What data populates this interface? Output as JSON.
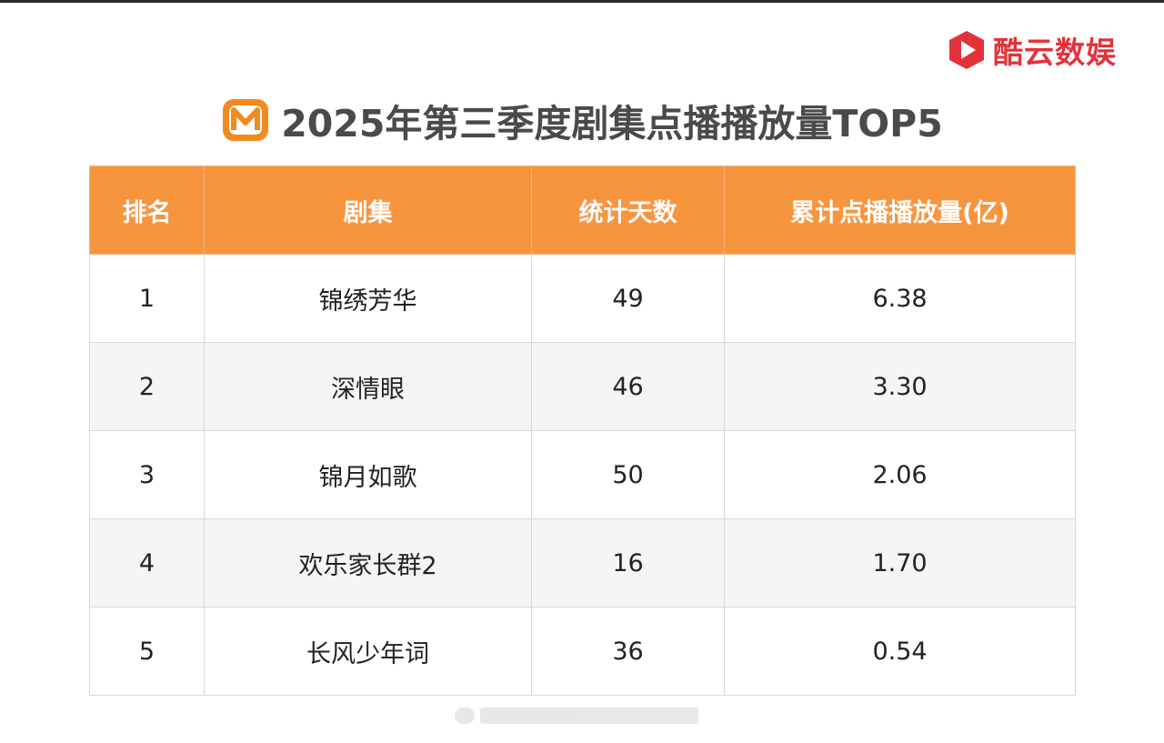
{
  "brand": {
    "name": "酷云数娱",
    "logo_icon": "play-hexagon-icon",
    "color": "#e4323a"
  },
  "title": {
    "logo_icon": "mango-tv-logo-icon",
    "text": "2025年第三季度剧集点播播放量TOP5"
  },
  "table": {
    "headers": [
      "排名",
      "剧集",
      "统计天数",
      "累计点播播放量(亿)"
    ],
    "header_color": "#f7953f",
    "rows": [
      {
        "rank": "1",
        "title": "锦绣芳华",
        "days": "49",
        "views": "6.38"
      },
      {
        "rank": "2",
        "title": "深情眼",
        "days": "46",
        "views": "3.30"
      },
      {
        "rank": "3",
        "title": "锦月如歌",
        "days": "50",
        "views": "2.06"
      },
      {
        "rank": "4",
        "title": "欢乐家长群2",
        "days": "16",
        "views": "1.70"
      },
      {
        "rank": "5",
        "title": "长风少年词",
        "days": "36",
        "views": "0.54"
      }
    ]
  }
}
